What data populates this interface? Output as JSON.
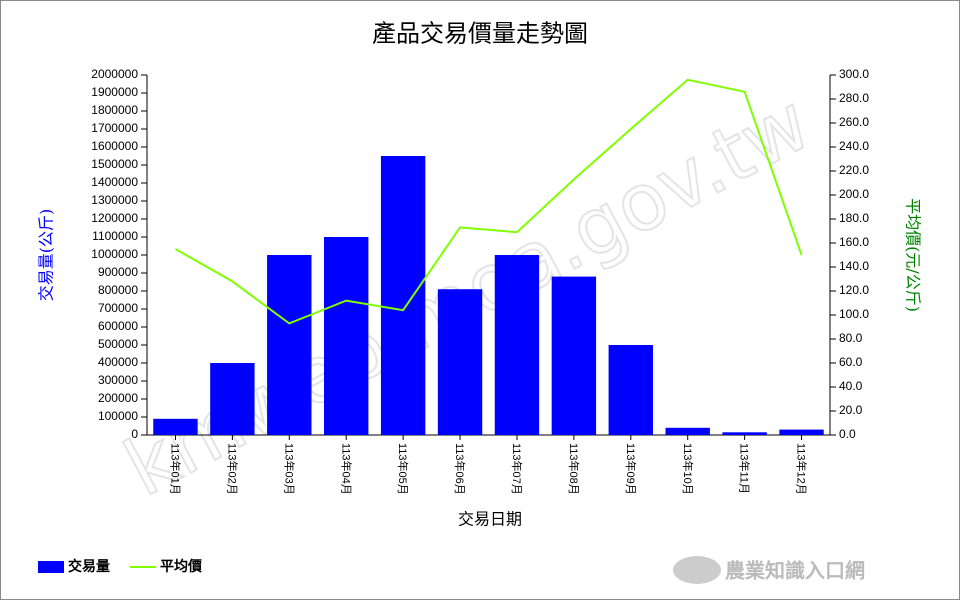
{
  "chart_data": {
    "type": "bar",
    "title": "產品交易價量走勢圖",
    "x_label": "交易日期",
    "y_label": "交易量(公斤)",
    "y2_label": "平均價(元/公斤)",
    "watermark": "kmweb.moa.gov.tw",
    "logo": "農業知識入口網",
    "categories": [
      "113年01月",
      "113年02月",
      "113年03月",
      "113年04月",
      "113年05月",
      "113年06月",
      "113年07月",
      "113年08月",
      "113年09月",
      "113年10月",
      "113年11月",
      "113年12月"
    ],
    "series": [
      {
        "name": "交易量",
        "type": "bar",
        "color": "#0000ff",
        "values": [
          90000,
          400000,
          1000000,
          1100000,
          1550000,
          810000,
          1000000,
          880000,
          500000,
          40000,
          15000,
          30000
        ]
      },
      {
        "name": "平均價",
        "type": "line",
        "axis": "y2",
        "color": "#7fff00",
        "values": [
          155,
          128,
          93,
          112,
          104,
          173,
          169,
          213,
          255,
          296,
          286,
          150
        ]
      }
    ],
    "ylim": [
      0,
      2000000
    ],
    "yticks": [
      0,
      100000,
      200000,
      300000,
      400000,
      500000,
      600000,
      700000,
      800000,
      900000,
      1000000,
      1100000,
      1200000,
      1300000,
      1400000,
      1500000,
      1600000,
      1700000,
      1800000,
      1900000,
      2000000
    ],
    "y2lim": [
      0,
      300
    ],
    "y2ticks": [
      {
        "value": 0,
        "label": "0.0"
      },
      {
        "value": 20,
        "label": "20.0"
      },
      {
        "value": 40,
        "label": "40.0"
      },
      {
        "value": 60,
        "label": "60.0"
      },
      {
        "value": 80,
        "label": "80.0"
      },
      {
        "value": 100,
        "label": "100.0"
      },
      {
        "value": 120,
        "label": "120.0"
      },
      {
        "value": 140,
        "label": "140.0"
      },
      {
        "value": 160,
        "label": "160.0"
      },
      {
        "value": 180,
        "label": "180.0"
      },
      {
        "value": 200,
        "label": "200.0"
      },
      {
        "value": 220,
        "label": "220.0"
      },
      {
        "value": 240,
        "label": "240.0"
      },
      {
        "value": 260,
        "label": "260.0"
      },
      {
        "value": 280,
        "label": "280.0"
      },
      {
        "value": 300,
        "label": "300.0"
      }
    ],
    "y_label_color": "#0000ff",
    "y2_label_color": "#008000",
    "grid": false,
    "legend": "bottom-left"
  }
}
